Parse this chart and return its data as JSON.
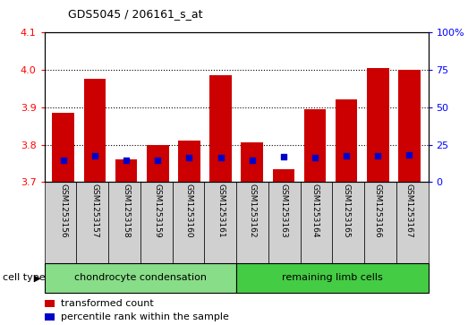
{
  "title": "GDS5045 / 206161_s_at",
  "samples": [
    "GSM1253156",
    "GSM1253157",
    "GSM1253158",
    "GSM1253159",
    "GSM1253160",
    "GSM1253161",
    "GSM1253162",
    "GSM1253163",
    "GSM1253164",
    "GSM1253165",
    "GSM1253166",
    "GSM1253167"
  ],
  "transformed_count": [
    3.885,
    3.975,
    3.76,
    3.8,
    3.81,
    3.985,
    3.805,
    3.735,
    3.895,
    3.92,
    4.005,
    4.0
  ],
  "percentile_rank_y": [
    3.758,
    3.77,
    3.758,
    3.758,
    3.765,
    3.765,
    3.758,
    3.768,
    3.765,
    3.77,
    3.77,
    3.773
  ],
  "ymin": 3.7,
  "ymax": 4.1,
  "yticks": [
    3.7,
    3.8,
    3.9,
    4.0,
    4.1
  ],
  "right_yticks": [
    0,
    25,
    50,
    75,
    100
  ],
  "bar_color": "#cc0000",
  "dot_color": "#0000cc",
  "cell_type_groups": [
    {
      "label": "chondrocyte condensation",
      "start": 0,
      "end": 5,
      "color": "#88dd88"
    },
    {
      "label": "remaining limb cells",
      "start": 6,
      "end": 11,
      "color": "#44cc44"
    }
  ],
  "cell_type_label": "cell type",
  "legend_items": [
    {
      "label": "transformed count",
      "color": "#cc0000"
    },
    {
      "label": "percentile rank within the sample",
      "color": "#0000cc"
    }
  ],
  "bar_width": 0.7,
  "plot_bg": "#ffffff",
  "label_bg": "#d0d0d0"
}
